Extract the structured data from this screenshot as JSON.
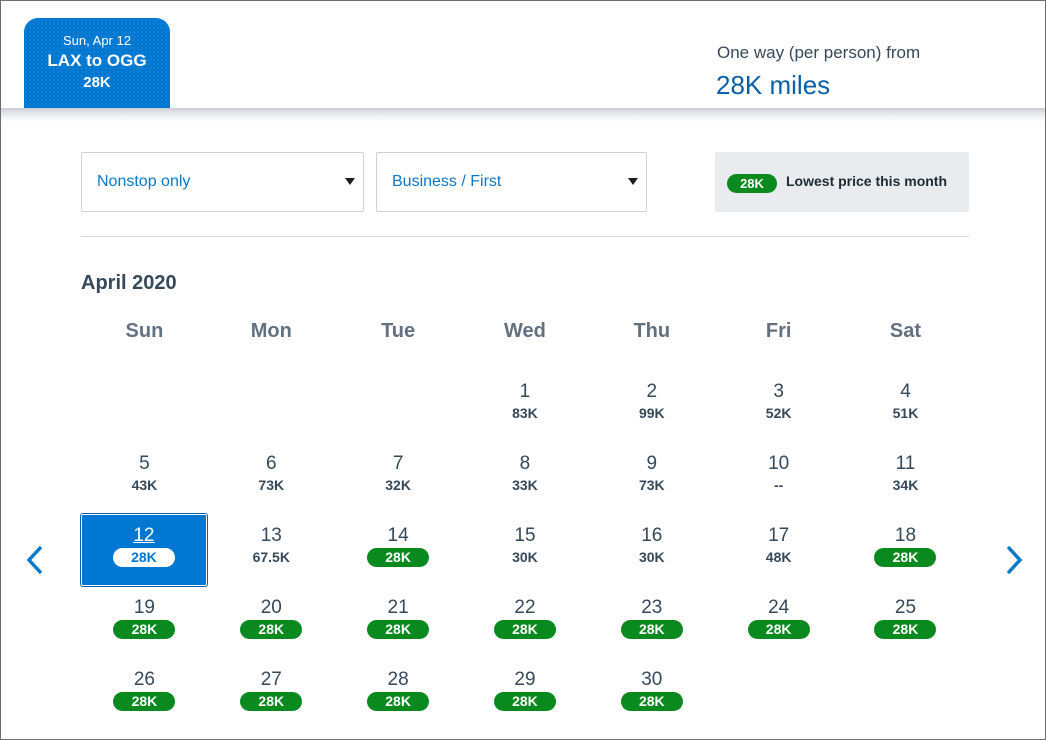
{
  "header": {
    "selected_flight": {
      "date": "Sun, Apr 12",
      "route": "LAX to OGG",
      "price": "28K"
    },
    "fare_label": "One way (per person) from",
    "fare_value": "28K miles"
  },
  "filters": {
    "stops": {
      "value": "Nonstop only"
    },
    "cabin": {
      "value": "Business / First"
    },
    "legend": {
      "badge": "28K",
      "label": "Lowest price this month"
    }
  },
  "calendar": {
    "month": "April 2020",
    "weekdays": [
      "Sun",
      "Mon",
      "Tue",
      "Wed",
      "Thu",
      "Fri",
      "Sat"
    ],
    "leading_blank_days": 3,
    "days": [
      {
        "day": "1",
        "price": "83K",
        "lowest": false
      },
      {
        "day": "2",
        "price": "99K",
        "lowest": false
      },
      {
        "day": "3",
        "price": "52K",
        "lowest": false
      },
      {
        "day": "4",
        "price": "51K",
        "lowest": false
      },
      {
        "day": "5",
        "price": "43K",
        "lowest": false
      },
      {
        "day": "6",
        "price": "73K",
        "lowest": false
      },
      {
        "day": "7",
        "price": "32K",
        "lowest": false
      },
      {
        "day": "8",
        "price": "33K",
        "lowest": false
      },
      {
        "day": "9",
        "price": "73K",
        "lowest": false
      },
      {
        "day": "10",
        "price": "--",
        "lowest": false
      },
      {
        "day": "11",
        "price": "34K",
        "lowest": false
      },
      {
        "day": "12",
        "price": "28K",
        "lowest": true,
        "selected": true
      },
      {
        "day": "13",
        "price": "67.5K",
        "lowest": false
      },
      {
        "day": "14",
        "price": "28K",
        "lowest": true
      },
      {
        "day": "15",
        "price": "30K",
        "lowest": false
      },
      {
        "day": "16",
        "price": "30K",
        "lowest": false
      },
      {
        "day": "17",
        "price": "48K",
        "lowest": false
      },
      {
        "day": "18",
        "price": "28K",
        "lowest": true
      },
      {
        "day": "19",
        "price": "28K",
        "lowest": true
      },
      {
        "day": "20",
        "price": "28K",
        "lowest": true
      },
      {
        "day": "21",
        "price": "28K",
        "lowest": true
      },
      {
        "day": "22",
        "price": "28K",
        "lowest": true
      },
      {
        "day": "23",
        "price": "28K",
        "lowest": true
      },
      {
        "day": "24",
        "price": "28K",
        "lowest": true
      },
      {
        "day": "25",
        "price": "28K",
        "lowest": true
      },
      {
        "day": "26",
        "price": "28K",
        "lowest": true
      },
      {
        "day": "27",
        "price": "28K",
        "lowest": true
      },
      {
        "day": "28",
        "price": "28K",
        "lowest": true
      },
      {
        "day": "29",
        "price": "28K",
        "lowest": true
      },
      {
        "day": "30",
        "price": "28K",
        "lowest": true
      }
    ]
  },
  "navigation": {
    "prev_icon": "chevron-left-icon",
    "next_icon": "chevron-right-icon"
  },
  "colors": {
    "brand_blue": "#0078d2",
    "lowest_green": "#0a8a1e",
    "text_dark": "#36495a",
    "link_blue": "#0b78c8"
  }
}
